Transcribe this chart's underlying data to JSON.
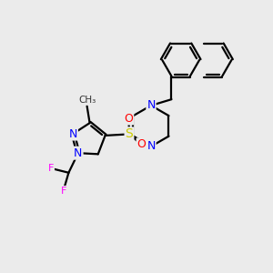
{
  "bg_color": "#ebebeb",
  "bond_color": "#000000",
  "bond_width": 1.6,
  "atom_colors": {
    "N": "#0000ff",
    "S": "#cccc00",
    "O": "#ff0000",
    "F": "#ff00ff",
    "C": "#000000"
  },
  "font_size_atom": 9,
  "title": ""
}
